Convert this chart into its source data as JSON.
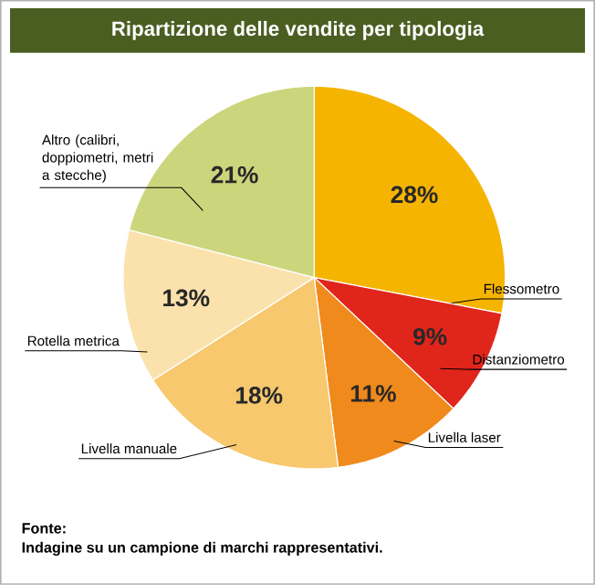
{
  "chart_data": {
    "type": "pie",
    "title": "Ripartizione delle vendite per tipologia",
    "categories": [
      "Flessometro",
      "Distanziometro",
      "Livella laser",
      "Livella manuale",
      "Rotella metrica",
      "Altro (calibri, doppiometri, metri a stecche)"
    ],
    "values": [
      28,
      9,
      11,
      18,
      13,
      21
    ],
    "value_labels": [
      "28%",
      "9%",
      "11%",
      "18%",
      "13%",
      "21%"
    ],
    "colors": [
      "#f5b400",
      "#e0251b",
      "#f08a1c",
      "#f7c86e",
      "#fbe2ad",
      "#cbd67c"
    ],
    "annotations": [
      "Fonte:",
      "Indagine su un campione di marchi rappresentativi."
    ]
  }
}
